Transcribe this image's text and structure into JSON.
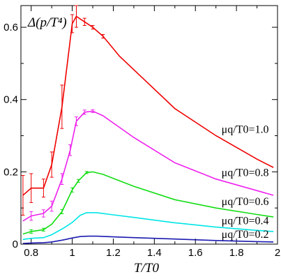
{
  "chart_data": {
    "type": "line",
    "title": "",
    "annotation": "Δ(p/T⁴)",
    "xlabel": "T/T0",
    "ylabel": "",
    "xlim": [
      0.75,
      2.0
    ],
    "ylim": [
      0,
      0.66
    ],
    "x_ticks": [
      0.8,
      1.0,
      1.2,
      1.4,
      1.6,
      1.8,
      2.0
    ],
    "x_tick_labels": [
      "0.8",
      "1",
      "1.2",
      "1.4",
      "1.6",
      "1.8",
      "2"
    ],
    "y_ticks": [
      0,
      0.2,
      0.4,
      0.6
    ],
    "y_tick_labels": [
      "0",
      "0.2",
      "0.4",
      "0.6"
    ],
    "grid": false,
    "series": [
      {
        "name": "μq/T0=0.2",
        "color": "#1a1ab0",
        "x": [
          0.76,
          0.8,
          0.86,
          0.9,
          0.96,
          1.0,
          1.04,
          1.08,
          1.12,
          1.2,
          1.3,
          1.5,
          1.7,
          1.9,
          1.98
        ],
        "y": [
          0.002,
          0.003,
          0.004,
          0.006,
          0.012,
          0.017,
          0.021,
          0.022,
          0.022,
          0.02,
          0.018,
          0.014,
          0.01,
          0.007,
          0.006
        ]
      },
      {
        "name": "μq/T0=0.4",
        "color": "#00e5e5",
        "x": [
          0.76,
          0.8,
          0.86,
          0.9,
          0.96,
          1.0,
          1.04,
          1.07,
          1.12,
          1.2,
          1.3,
          1.5,
          1.7,
          1.9,
          1.98
        ],
        "y": [
          0.013,
          0.016,
          0.018,
          0.026,
          0.045,
          0.06,
          0.08,
          0.087,
          0.087,
          0.081,
          0.074,
          0.059,
          0.047,
          0.038,
          0.035
        ]
      },
      {
        "name": "μq/T0=0.6",
        "color": "#11dd11",
        "x": [
          0.76,
          0.8,
          0.86,
          0.9,
          0.95,
          1.0,
          1.03,
          1.07,
          1.1,
          1.15,
          1.2,
          1.3,
          1.5,
          1.7,
          1.9,
          1.98
        ],
        "y": [
          0.028,
          0.035,
          0.04,
          0.055,
          0.09,
          0.15,
          0.175,
          0.198,
          0.2,
          0.193,
          0.182,
          0.16,
          0.123,
          0.1,
          0.082,
          0.075
        ]
      },
      {
        "name": "μq/T0=0.8",
        "color": "#ee22ee",
        "x": [
          0.76,
          0.8,
          0.86,
          0.9,
          0.95,
          0.99,
          1.02,
          1.06,
          1.1,
          1.15,
          1.2,
          1.3,
          1.5,
          1.7,
          1.9,
          1.98
        ],
        "y": [
          0.064,
          0.078,
          0.085,
          0.105,
          0.18,
          0.26,
          0.34,
          0.365,
          0.368,
          0.355,
          0.335,
          0.295,
          0.225,
          0.18,
          0.148,
          0.135
        ]
      },
      {
        "name": "μq/T0=1.0",
        "color": "#ee0000",
        "x": [
          0.76,
          0.8,
          0.86,
          0.9,
          0.95,
          1.0,
          1.02,
          1.06,
          1.1,
          1.15,
          1.23,
          1.37,
          1.5,
          1.7,
          1.9,
          1.98
        ],
        "y": [
          0.135,
          0.155,
          0.155,
          0.22,
          0.38,
          0.61,
          0.63,
          0.615,
          0.6,
          0.575,
          0.52,
          0.445,
          0.375,
          0.3,
          0.235,
          0.212
        ]
      }
    ],
    "error_bars": [
      {
        "series": 4,
        "x": 0.76,
        "y": 0.135,
        "err": 0.055
      },
      {
        "series": 4,
        "x": 0.8,
        "y": 0.155,
        "err": 0.04
      },
      {
        "series": 4,
        "x": 0.86,
        "y": 0.155,
        "err": 0.025
      },
      {
        "series": 4,
        "x": 0.9,
        "y": 0.22,
        "err": 0.035
      },
      {
        "series": 4,
        "x": 0.95,
        "y": 0.38,
        "err": 0.06
      },
      {
        "series": 4,
        "x": 1.0,
        "y": 0.61,
        "err": 0.025
      },
      {
        "series": 4,
        "x": 1.02,
        "y": 0.63,
        "err": 0.03
      },
      {
        "series": 4,
        "x": 1.06,
        "y": 0.615,
        "err": 0.01
      },
      {
        "series": 4,
        "x": 1.1,
        "y": 0.6,
        "err": 0.005
      },
      {
        "series": 4,
        "x": 1.15,
        "y": 0.575,
        "err": 0.005
      },
      {
        "series": 3,
        "x": 0.8,
        "y": 0.078,
        "err": 0.012
      },
      {
        "series": 3,
        "x": 0.86,
        "y": 0.085,
        "err": 0.01
      },
      {
        "series": 3,
        "x": 0.9,
        "y": 0.105,
        "err": 0.014
      },
      {
        "series": 3,
        "x": 0.95,
        "y": 0.18,
        "err": 0.015
      },
      {
        "series": 3,
        "x": 0.99,
        "y": 0.26,
        "err": 0.015
      },
      {
        "series": 3,
        "x": 1.02,
        "y": 0.34,
        "err": 0.012
      },
      {
        "series": 3,
        "x": 1.06,
        "y": 0.365,
        "err": 0.006
      },
      {
        "series": 3,
        "x": 1.1,
        "y": 0.368,
        "err": 0.004
      },
      {
        "series": 2,
        "x": 0.8,
        "y": 0.035,
        "err": 0.005
      },
      {
        "series": 2,
        "x": 0.86,
        "y": 0.04,
        "err": 0.004
      },
      {
        "series": 2,
        "x": 0.95,
        "y": 0.09,
        "err": 0.006
      },
      {
        "series": 2,
        "x": 1.0,
        "y": 0.15,
        "err": 0.006
      },
      {
        "series": 2,
        "x": 1.03,
        "y": 0.175,
        "err": 0.004
      },
      {
        "series": 2,
        "x": 1.07,
        "y": 0.198,
        "err": 0.003
      }
    ]
  }
}
